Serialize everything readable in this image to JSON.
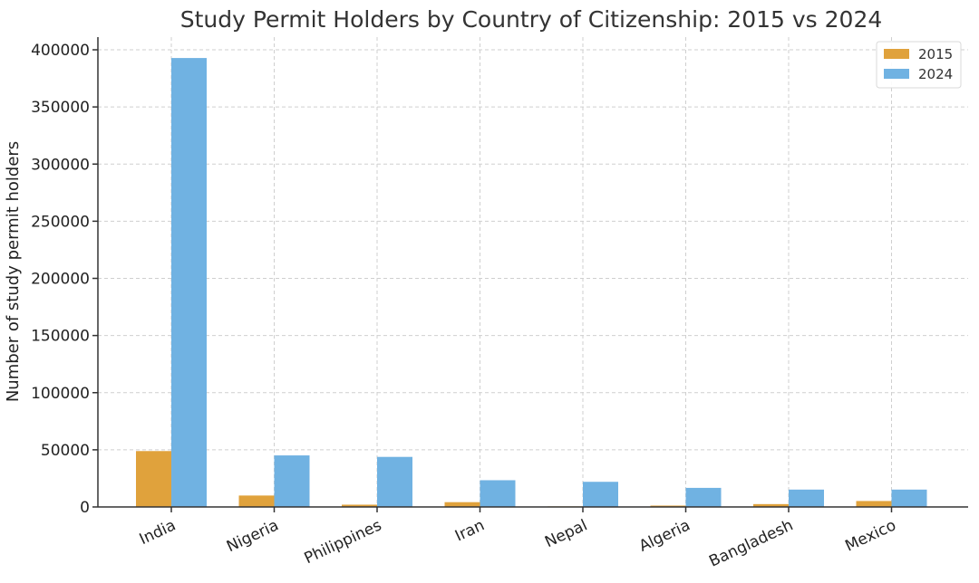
{
  "chart_data": {
    "type": "bar",
    "title": "Study Permit Holders by Country of Citizenship: 2015 vs 2024",
    "xlabel": "",
    "ylabel": "Number of study permit holders",
    "categories": [
      "India",
      "Nigeria",
      "Philippines",
      "Iran",
      "Nepal",
      "Algeria",
      "Bangladesh",
      "Mexico"
    ],
    "series": [
      {
        "name": "2015",
        "color": "#e0a23c",
        "values": [
          48900,
          10000,
          2000,
          4200,
          500,
          1200,
          2500,
          5200
        ]
      },
      {
        "name": "2024",
        "color": "#70b2e2",
        "values": [
          392800,
          45100,
          43800,
          23400,
          22000,
          16700,
          15200,
          15200
        ]
      }
    ],
    "ylim": [
      0,
      400000
    ],
    "yticks": [
      "0",
      "50000",
      "100000",
      "150000",
      "200000",
      "250000",
      "300000",
      "350000",
      "400000"
    ],
    "grid": true,
    "legend_position": "top-right"
  }
}
